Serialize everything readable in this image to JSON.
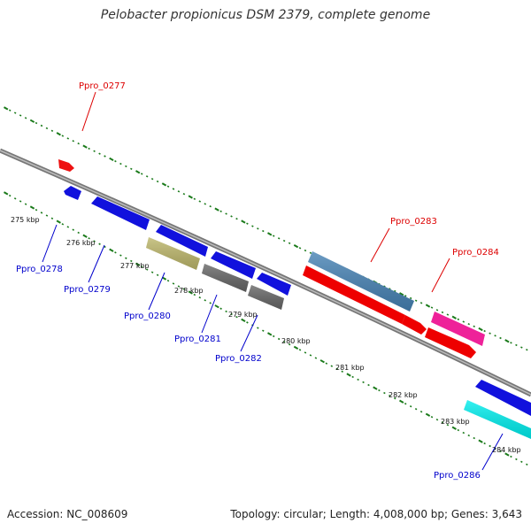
{
  "title": "Pelobacter propionicus DSM 2379, complete genome",
  "accession": "Accession: NC_008609",
  "topology": "Topology: circular; Length: 4,008,000 bp; Genes: 3,643",
  "colors": {
    "backbone": "#8a8a8a",
    "tick": "#1a7a1a",
    "forward_label": "#dd0000",
    "reverse_label": "#0000cc"
  },
  "kbp_labels": [
    "275 kbp",
    "276 kbp",
    "277 kbp",
    "278 kbp",
    "279 kbp",
    "280 kbp",
    "281 kbp",
    "282 kbp",
    "283 kbp",
    "284 kbp"
  ],
  "gene_labels": {
    "forward": [
      "Ppro_0277",
      "Ppro_0283",
      "Ppro_0284"
    ],
    "reverse": [
      "Ppro_0278",
      "Ppro_0279",
      "Ppro_0280",
      "Ppro_0281",
      "Ppro_0282",
      "Ppro_0286"
    ]
  }
}
